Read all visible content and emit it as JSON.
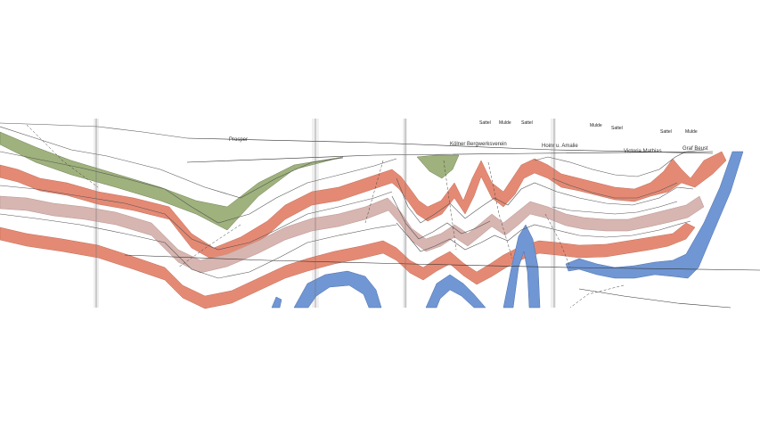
{
  "section_labels": {
    "prosper": "Prosper",
    "koelner": "Kölner Bergwerksverein",
    "hoinrich": "Hoinr u. Amalie",
    "victoria": "Victoria Mathias",
    "graf": "Graf Beust"
  },
  "structure_labels": {
    "sattel_1": "Sattel",
    "mulde_1": "Mulde",
    "sattel_2": "Sattel",
    "mulde_2": "Mulde",
    "sattel_3": "Sattel",
    "sattel_4": "Sattel",
    "mulde_3": "Mulde"
  },
  "colors": {
    "green_seam": "#9fb27d",
    "red_seam": "#e48a74",
    "pink_seam": "#d7b5b0",
    "blue_seam": "#7096d3",
    "line": "#555555",
    "sheet_background": "#ffffff"
  }
}
